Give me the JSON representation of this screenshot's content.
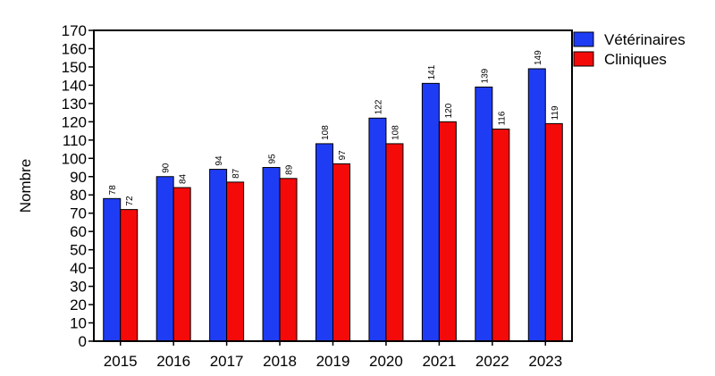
{
  "chart_data": {
    "type": "bar",
    "y_label": "Nombre",
    "categories": [
      "2015",
      "2016",
      "2017",
      "2018",
      "2019",
      "2020",
      "2021",
      "2022",
      "2023"
    ],
    "series": [
      {
        "name": "Vétérinaires",
        "color": "#1f3cf5",
        "values": [
          78,
          90,
          94,
          95,
          108,
          122,
          141,
          139,
          149
        ]
      },
      {
        "name": "Cliniques",
        "color": "#f50a0a",
        "values": [
          72,
          84,
          87,
          89,
          97,
          108,
          120,
          116,
          119
        ]
      }
    ],
    "ylim": [
      0,
      170
    ],
    "yticks": [
      0,
      10,
      20,
      30,
      40,
      50,
      60,
      70,
      80,
      90,
      100,
      110,
      120,
      130,
      140,
      150,
      160,
      170
    ],
    "legend": "outside-top-right"
  }
}
